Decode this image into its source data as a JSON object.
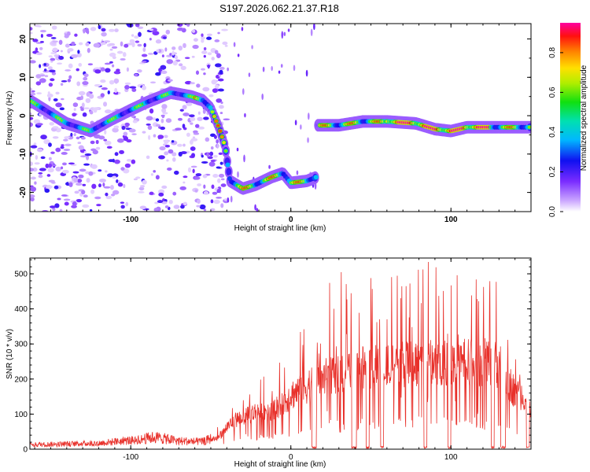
{
  "title": "S197.2026.062.21.37.R18",
  "colors": {
    "line": "#e8302a",
    "frame": "#000000",
    "scatter": "#8a3cf0"
  },
  "chart_data": [
    {
      "type": "heatmap",
      "name": "spectrogram",
      "xlabel": "Height of straight line (km)",
      "ylabel": "Frequency (Hz)",
      "xlim": [
        -163,
        150
      ],
      "ylim": [
        -25,
        24
      ],
      "xticks": [
        -100,
        0,
        100
      ],
      "yticks": [
        -20,
        -10,
        0,
        10,
        20
      ],
      "colorbar": {
        "label": "Normalized spectral amplitude",
        "range": [
          0,
          0.95
        ],
        "ticks": [
          "0.0",
          "0.2",
          "0.4",
          "0.6",
          "0.8"
        ]
      },
      "ridge": [
        {
          "x": -163,
          "y": 4
        },
        {
          "x": -140,
          "y": -2
        },
        {
          "x": -125,
          "y": -4
        },
        {
          "x": -112,
          "y": -1
        },
        {
          "x": -100,
          "y": 1.5
        },
        {
          "x": -90,
          "y": 3.5
        },
        {
          "x": -75,
          "y": 6
        },
        {
          "x": -62,
          "y": 5
        },
        {
          "x": -55,
          "y": 4
        },
        {
          "x": -50,
          "y": 2
        },
        {
          "x": -45,
          "y": -3
        },
        {
          "x": -41,
          "y": -8
        },
        {
          "x": -38,
          "y": -17
        },
        {
          "x": -30,
          "y": -19
        },
        {
          "x": -22,
          "y": -18
        },
        {
          "x": -12,
          "y": -16
        },
        {
          "x": -5,
          "y": -15
        },
        {
          "x": 0,
          "y": -17.5
        },
        {
          "x": 10,
          "y": -17
        },
        {
          "x": 16,
          "y": -16
        },
        {
          "x": 17,
          "y": -2.5
        },
        {
          "x": 30,
          "y": -2.5
        },
        {
          "x": 45,
          "y": -1.5
        },
        {
          "x": 60,
          "y": -1.5
        },
        {
          "x": 78,
          "y": -2
        },
        {
          "x": 90,
          "y": -3.5
        },
        {
          "x": 100,
          "y": -4
        },
        {
          "x": 110,
          "y": -3
        },
        {
          "x": 125,
          "y": -3
        },
        {
          "x": 140,
          "y": -3
        },
        {
          "x": 148,
          "y": -3
        }
      ]
    },
    {
      "type": "line",
      "name": "snr",
      "xlabel": "Height of straight line (km)",
      "ylabel": "SNR (10 * v/v)",
      "xlim": [
        -163,
        150
      ],
      "ylim": [
        0,
        545
      ],
      "xticks": [
        -100,
        0,
        100
      ],
      "yticks": [
        0,
        100,
        200,
        300,
        400,
        500
      ],
      "envelope": [
        {
          "x": -163,
          "y": 15
        },
        {
          "x": -120,
          "y": 20
        },
        {
          "x": -100,
          "y": 30
        },
        {
          "x": -85,
          "y": 40
        },
        {
          "x": -70,
          "y": 28
        },
        {
          "x": -55,
          "y": 25
        },
        {
          "x": -45,
          "y": 45
        },
        {
          "x": -38,
          "y": 95
        },
        {
          "x": -30,
          "y": 120
        },
        {
          "x": -20,
          "y": 140
        },
        {
          "x": -10,
          "y": 150
        },
        {
          "x": -5,
          "y": 170
        },
        {
          "x": 0,
          "y": 200
        },
        {
          "x": 8,
          "y": 225
        },
        {
          "x": 15,
          "y": 250
        },
        {
          "x": 25,
          "y": 280
        },
        {
          "x": 40,
          "y": 300
        },
        {
          "x": 55,
          "y": 310
        },
        {
          "x": 70,
          "y": 320
        },
        {
          "x": 85,
          "y": 325
        },
        {
          "x": 100,
          "y": 330
        },
        {
          "x": 115,
          "y": 325
        },
        {
          "x": 125,
          "y": 320
        },
        {
          "x": 132,
          "y": 310
        },
        {
          "x": 136,
          "y": 250
        },
        {
          "x": 140,
          "y": 210
        },
        {
          "x": 145,
          "y": 200
        },
        {
          "x": 150,
          "y": 150
        }
      ],
      "dropouts": [
        {
          "from": 13,
          "to": 16
        },
        {
          "from": 38,
          "to": 41
        },
        {
          "from": 47,
          "to": 49
        },
        {
          "from": 56,
          "to": 58
        },
        {
          "from": 83,
          "to": 85
        },
        {
          "from": 98,
          "to": 100
        },
        {
          "from": 125,
          "to": 127
        },
        {
          "from": 131,
          "to": 134
        },
        {
          "from": 147,
          "to": 149
        }
      ]
    }
  ]
}
